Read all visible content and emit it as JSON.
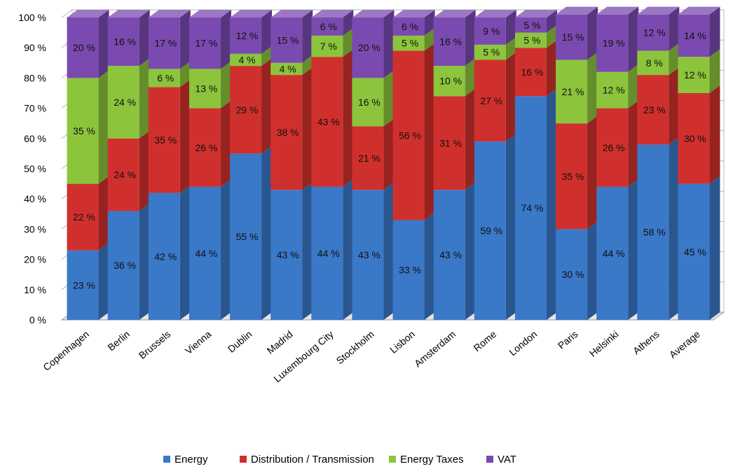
{
  "chart_data": {
    "type": "bar",
    "stacked": true,
    "three_d": true,
    "categories": [
      "Copenhagen",
      "Berlin",
      "Brussels",
      "Vienna",
      "Dublin",
      "Madrid",
      "Luxembourg City",
      "Stockholm",
      "Lisbon",
      "Amsterdam",
      "Rome",
      "London",
      "Paris",
      "Helsinki",
      "Athens",
      "Average"
    ],
    "series": [
      {
        "name": "Energy",
        "color": "#3a78c8",
        "values": [
          23,
          36,
          42,
          44,
          55,
          43,
          44,
          43,
          33,
          43,
          59,
          74,
          30,
          44,
          58,
          45
        ]
      },
      {
        "name": "Distribution / Transmission",
        "color": "#d0302d",
        "values": [
          22,
          24,
          35,
          26,
          29,
          38,
          43,
          21,
          56,
          31,
          27,
          16,
          35,
          26,
          23,
          30
        ]
      },
      {
        "name": "Energy Taxes",
        "color": "#8cc43c",
        "values": [
          35,
          24,
          6,
          13,
          4,
          4,
          7,
          16,
          5,
          10,
          5,
          5,
          21,
          12,
          8,
          12
        ]
      },
      {
        "name": "VAT",
        "color": "#7a4ab0",
        "values": [
          20,
          16,
          17,
          17,
          12,
          15,
          6,
          20,
          6,
          16,
          9,
          5,
          15,
          19,
          12,
          14
        ]
      }
    ],
    "y_ticks": [
      "0 %",
      "10 %",
      "20 %",
      "30 %",
      "40 %",
      "50 %",
      "60 %",
      "70 %",
      "80 %",
      "90 %",
      "100 %"
    ],
    "ylim": [
      0,
      100
    ],
    "grid": true,
    "legend_position": "bottom",
    "title": "",
    "xlabel": "",
    "ylabel": ""
  }
}
